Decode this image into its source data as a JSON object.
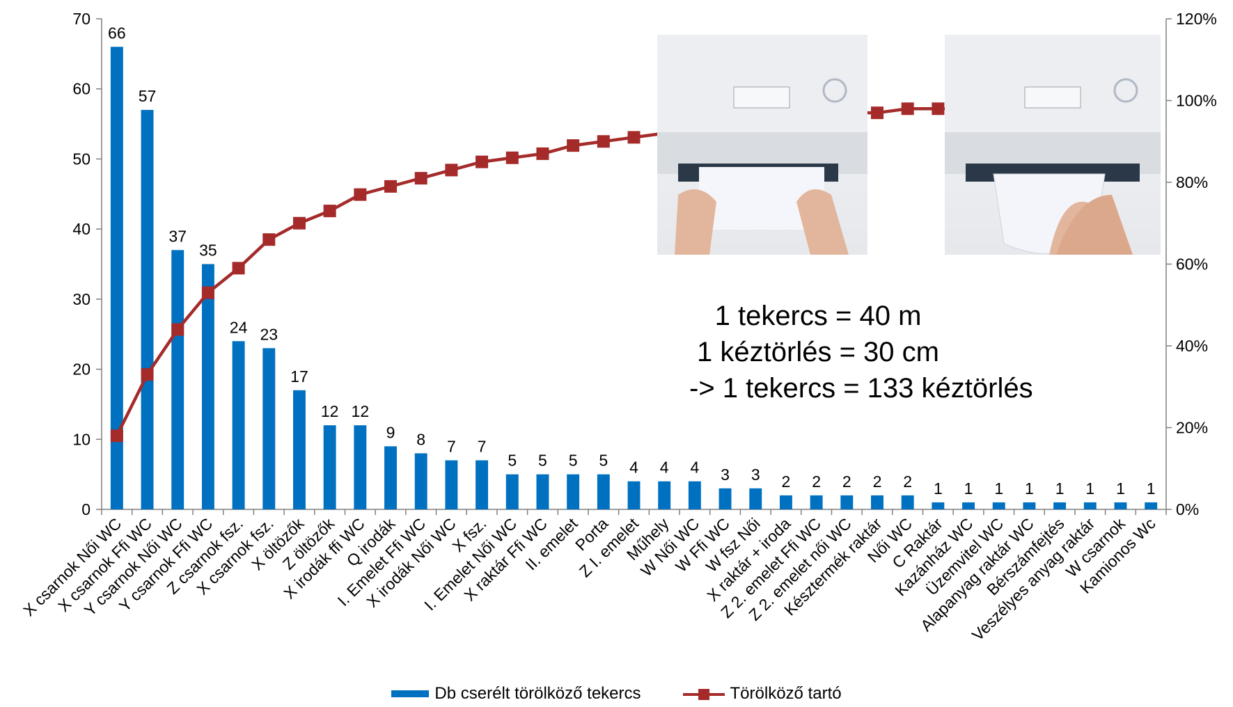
{
  "chart_data": {
    "type": "bar",
    "categories": [
      "X csarnok Női WC",
      "X csarnok Ffi WC",
      "Y csarnok Női WC",
      "Y csarnok Ffi WC",
      "Z csarnok fsz.",
      "X csarnok fsz.",
      "X öltözők",
      "Z öltözők",
      "X irodák ffi WC",
      "Q irodák",
      "I. Emelet Ffi WC",
      "X irodák Női WC",
      "X fsz.",
      "I. Emelet Női WC",
      "X raktár Ffi WC",
      "II. emelet",
      "Porta",
      "Z I. emelet",
      "Műhely",
      "W Női WC",
      "W Ffi WC",
      "W fsz Női",
      "X raktár + iroda",
      "Z 2. emelet  Ffi WC",
      "Z 2. emelet  női WC",
      "Késztermék raktár",
      "Női  WC",
      "C  Raktár",
      "Kazánház WC",
      "Üzemvitel WC",
      "Alapanyag raktár WC",
      "Bérszámfejtés",
      "Veszélyes anyag raktár",
      "W csarnok",
      "Kamionos Wc"
    ],
    "series": [
      {
        "name": "Db cserélt törölköző tekercs",
        "axis": "left",
        "values": [
          66,
          57,
          37,
          35,
          24,
          23,
          17,
          12,
          12,
          9,
          8,
          7,
          7,
          5,
          5,
          5,
          5,
          4,
          4,
          4,
          3,
          3,
          2,
          2,
          2,
          2,
          2,
          1,
          1,
          1,
          1,
          1,
          1,
          1,
          1
        ]
      },
      {
        "name": "Törölköző tartó",
        "axis": "right",
        "unit": "%",
        "values": [
          18,
          33,
          44,
          53,
          59,
          66,
          70,
          73,
          77,
          79,
          81,
          83,
          85,
          86,
          87,
          89,
          90,
          91,
          92,
          94,
          95,
          95,
          96,
          96,
          97,
          97,
          98,
          98,
          98,
          99,
          99,
          99,
          99,
          100,
          100
        ]
      }
    ],
    "y_left": {
      "min": 0,
      "max": 70,
      "ticks": [
        "0",
        "10",
        "20",
        "30",
        "40",
        "50",
        "60",
        "70"
      ]
    },
    "y_right": {
      "min": 0,
      "max": 120,
      "ticks": [
        "0%",
        "20%",
        "40%",
        "60%",
        "80%",
        "100%",
        "120%"
      ]
    },
    "grid": false,
    "legend_position": "bottom",
    "bar_color": "#0070c0",
    "line_color": "#a52a2a"
  },
  "annotation": {
    "line1": "1 tekercs = 40 m",
    "line2": "1 kéztörlés = 30 cm",
    "line3": "-> 1 tekercs = 133 kéztörlés"
  }
}
